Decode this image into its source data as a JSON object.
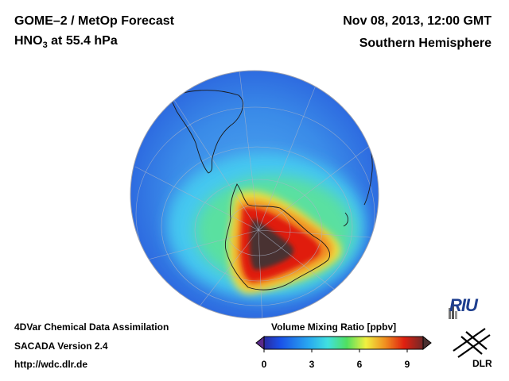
{
  "header": {
    "title_line1": "GOME–2 / MetOp Forecast",
    "species": "HNO",
    "species_sub": "3",
    "level": "at 55.4 hPa",
    "date": "Nov 08, 2013, 12:00 GMT",
    "region": "Southern Hemisphere"
  },
  "footer": {
    "line1": "4DVar Chemical Data Assimilation",
    "line2": "SACADA Version 2.4",
    "line3": "http://wdc.dlr.de"
  },
  "colorbar": {
    "title": "Volume Mixing Ratio [ppbv]",
    "ticks": [
      "0",
      "3",
      "6",
      "9"
    ],
    "min": 0,
    "max": 10
  },
  "logos": {
    "riu": "RIU",
    "dlr": "DLR"
  },
  "colors": {
    "ocean_background": "#2a5fe0",
    "low": "#3a9ff0",
    "mid": "#4fe0a0",
    "high": "#e01a10",
    "max": "#4a3030"
  }
}
